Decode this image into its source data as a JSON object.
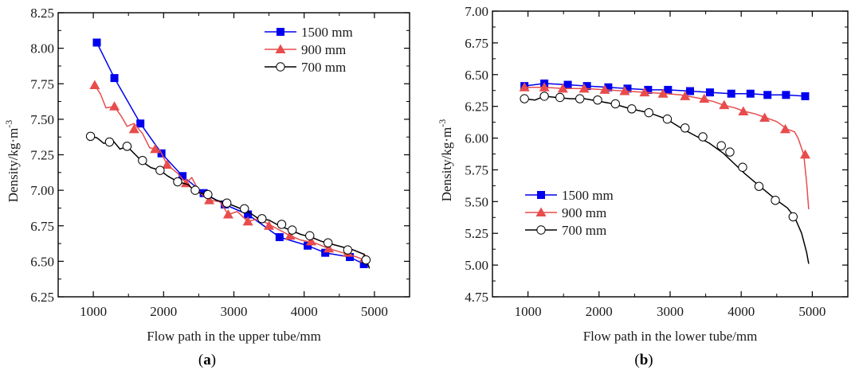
{
  "chart_data": [
    {
      "panel": "(a)",
      "panel_letter": "a",
      "type": "line",
      "title": "",
      "xlabel": "Flow path in the upper tube/mm",
      "ylabel": "Density/kg·m-3",
      "ylabel_base": "Density/kg·m",
      "ylabel_sup": "-3",
      "xlim": [
        500,
        5500
      ],
      "ylim": [
        6.25,
        8.25
      ],
      "xticks": [
        1000,
        2000,
        3000,
        4000,
        5000
      ],
      "xtick_labels": [
        "1000",
        "2000",
        "3000",
        "4000",
        "5000"
      ],
      "yticks": [
        6.25,
        6.5,
        6.75,
        7.0,
        7.25,
        7.5,
        7.75,
        8.0,
        8.25
      ],
      "ytick_labels": [
        "6.25",
        "6.50",
        "6.75",
        "7.00",
        "7.25",
        "7.50",
        "7.75",
        "8.00",
        "8.25"
      ],
      "grid": false,
      "legend_position": "top-right",
      "series": [
        {
          "name": "1500 mm",
          "color": "#0000ee",
          "marker": "square",
          "x": [
            1050,
            1300,
            1670,
            1970,
            2270,
            2570,
            2870,
            3200,
            3650,
            4050,
            4300,
            4650,
            4850,
            4920
          ],
          "y": [
            8.04,
            7.79,
            7.47,
            7.26,
            7.1,
            6.98,
            6.9,
            6.83,
            6.67,
            6.61,
            6.56,
            6.53,
            6.48,
            6.47
          ],
          "markers_x": [
            1050,
            1300,
            1670,
            1970,
            2270,
            2570,
            2870,
            3200,
            3650,
            4050,
            4300,
            4650,
            4850
          ],
          "markers_y": [
            8.04,
            7.79,
            7.47,
            7.26,
            7.1,
            6.98,
            6.9,
            6.83,
            6.67,
            6.61,
            6.56,
            6.53,
            6.48
          ]
        },
        {
          "name": "900 mm",
          "color": "#e84c4c",
          "marker": "triangle",
          "x": [
            1020,
            1100,
            1180,
            1300,
            1400,
            1480,
            1580,
            1700,
            1800,
            1950,
            2050,
            2200,
            2320,
            2400,
            2520,
            2650,
            2800,
            2920,
            3050,
            3200,
            3350,
            3500,
            3650,
            3800,
            3950,
            4150,
            4350,
            4550,
            4750,
            4900
          ],
          "y": [
            7.74,
            7.68,
            7.58,
            7.59,
            7.52,
            7.45,
            7.47,
            7.4,
            7.3,
            7.28,
            7.18,
            7.12,
            7.05,
            7.09,
            6.98,
            6.93,
            6.92,
            6.83,
            6.85,
            6.78,
            6.8,
            6.76,
            6.72,
            6.68,
            6.65,
            6.63,
            6.59,
            6.56,
            6.53,
            6.5
          ],
          "markers_x": [
            1020,
            1300,
            1580,
            1880,
            2050,
            2320,
            2650,
            2920,
            3200,
            3500,
            3800,
            4100,
            4350,
            4620,
            4860
          ],
          "markers_y": [
            7.74,
            7.59,
            7.43,
            7.29,
            7.18,
            7.05,
            6.93,
            6.83,
            6.78,
            6.75,
            6.68,
            6.64,
            6.59,
            6.56,
            6.52
          ]
        },
        {
          "name": "700 mm",
          "color": "#000000",
          "marker": "circle-open",
          "x": [
            960,
            1050,
            1150,
            1280,
            1380,
            1480,
            1600,
            1700,
            1820,
            1950,
            2060,
            2200,
            2350,
            2450,
            2600,
            2750,
            2900,
            3050,
            3200,
            3350,
            3500,
            3650,
            3800,
            3950,
            4100,
            4250,
            4400,
            4550,
            4700,
            4850,
            4930
          ],
          "y": [
            7.38,
            7.37,
            7.33,
            7.35,
            7.29,
            7.31,
            7.25,
            7.2,
            7.16,
            7.14,
            7.1,
            7.06,
            7.04,
            6.99,
            6.97,
            6.93,
            6.91,
            6.88,
            6.85,
            6.8,
            6.79,
            6.75,
            6.72,
            6.69,
            6.67,
            6.64,
            6.62,
            6.6,
            6.58,
            6.55,
            6.45
          ],
          "markers_x": [
            960,
            1230,
            1480,
            1700,
            1950,
            2200,
            2450,
            2630,
            2900,
            3150,
            3400,
            3680,
            3830,
            4080,
            4340,
            4620,
            4880
          ],
          "markers_y": [
            7.38,
            7.34,
            7.31,
            7.21,
            7.14,
            7.06,
            7.0,
            6.97,
            6.91,
            6.87,
            6.8,
            6.76,
            6.72,
            6.68,
            6.63,
            6.58,
            6.51
          ]
        }
      ]
    },
    {
      "panel": "(b)",
      "panel_letter": "b",
      "type": "line",
      "title": "",
      "xlabel": "Flow path in the lower tube/mm",
      "ylabel": "Density/kg·m-3",
      "ylabel_base": "Density/kg·m",
      "ylabel_sup": "-3",
      "xlim": [
        500,
        5500
      ],
      "ylim": [
        4.75,
        7.0
      ],
      "xticks": [
        1000,
        2000,
        3000,
        4000,
        5000
      ],
      "xtick_labels": [
        "1000",
        "2000",
        "3000",
        "4000",
        "5000"
      ],
      "yticks": [
        4.75,
        5.0,
        5.25,
        5.5,
        5.75,
        6.0,
        6.25,
        6.5,
        6.75,
        7.0
      ],
      "ytick_labels": [
        "4.75",
        "5.00",
        "5.25",
        "5.50",
        "5.75",
        "6.00",
        "6.25",
        "6.50",
        "6.75",
        "7.00"
      ],
      "grid": false,
      "legend_position": "center-left",
      "series": [
        {
          "name": "1500 mm",
          "color": "#0000ee",
          "marker": "square",
          "x": [
            950,
            1230,
            1560,
            1830,
            2130,
            2400,
            2690,
            2970,
            3280,
            3560,
            3860,
            4130,
            4370,
            4630,
            4900
          ],
          "y": [
            6.41,
            6.43,
            6.42,
            6.41,
            6.4,
            6.39,
            6.38,
            6.38,
            6.37,
            6.36,
            6.35,
            6.35,
            6.34,
            6.34,
            6.33
          ],
          "markers_x": [
            950,
            1230,
            1560,
            1830,
            2130,
            2400,
            2690,
            2970,
            3280,
            3560,
            3860,
            4130,
            4370,
            4630,
            4900
          ],
          "markers_y": [
            6.41,
            6.43,
            6.42,
            6.41,
            6.4,
            6.39,
            6.38,
            6.38,
            6.37,
            6.36,
            6.35,
            6.35,
            6.34,
            6.34,
            6.33
          ]
        },
        {
          "name": "900 mm",
          "color": "#e84c4c",
          "marker": "triangle",
          "x": [
            950,
            1230,
            1500,
            1800,
            2100,
            2380,
            2650,
            2950,
            3150,
            3250,
            3450,
            3600,
            3750,
            3900,
            4050,
            4200,
            4350,
            4500,
            4650,
            4750,
            4800,
            4880,
            4920,
            4950
          ],
          "y": [
            6.4,
            6.4,
            6.39,
            6.39,
            6.38,
            6.37,
            6.36,
            6.35,
            6.34,
            6.33,
            6.31,
            6.29,
            6.26,
            6.24,
            6.21,
            6.19,
            6.16,
            6.13,
            6.07,
            6.05,
            6.0,
            5.87,
            5.65,
            5.44
          ],
          "markers_x": [
            950,
            1230,
            1490,
            1790,
            2080,
            2360,
            2640,
            2900,
            3210,
            3480,
            3760,
            4030,
            4330,
            4620,
            4900
          ],
          "markers_y": [
            6.4,
            6.4,
            6.39,
            6.39,
            6.38,
            6.37,
            6.36,
            6.35,
            6.33,
            6.31,
            6.26,
            6.21,
            6.16,
            6.07,
            5.87
          ]
        },
        {
          "name": "700 mm",
          "color": "#000000",
          "marker": "circle-open",
          "x": [
            950,
            1100,
            1230,
            1400,
            1600,
            1800,
            2000,
            2200,
            2450,
            2700,
            2950,
            3150,
            3350,
            3550,
            3750,
            3900,
            4050,
            4200,
            4350,
            4500,
            4650,
            4750,
            4850,
            4920,
            4950
          ],
          "y": [
            6.31,
            6.3,
            6.33,
            6.32,
            6.31,
            6.31,
            6.29,
            6.27,
            6.23,
            6.2,
            6.15,
            6.08,
            6.02,
            5.96,
            5.88,
            5.8,
            5.72,
            5.65,
            5.58,
            5.51,
            5.45,
            5.38,
            5.25,
            5.1,
            5.01
          ],
          "markers_x": [
            950,
            1230,
            1450,
            1730,
            1980,
            2230,
            2460,
            2700,
            2960,
            3210,
            3460,
            3720,
            3840,
            4020,
            4250,
            4480,
            4730
          ],
          "markers_y": [
            6.31,
            6.33,
            6.32,
            6.31,
            6.3,
            6.27,
            6.23,
            6.2,
            6.15,
            6.08,
            6.01,
            5.94,
            5.89,
            5.77,
            5.62,
            5.51,
            5.38
          ]
        }
      ]
    }
  ]
}
